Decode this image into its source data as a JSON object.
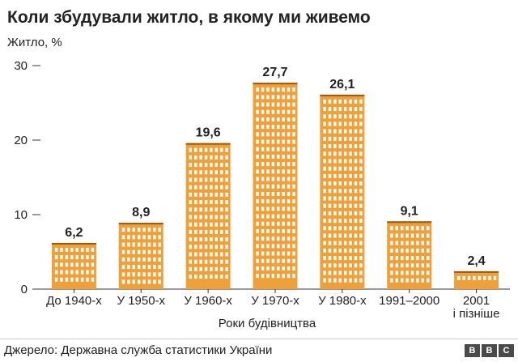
{
  "title": "Коли збудували житло, в якому ми живемо",
  "source": "Джерело: Державна служба статистики України",
  "logo": [
    "B",
    "B",
    "C"
  ],
  "colors": {
    "bar": "#f0a038",
    "bar_edge": "#9a5a14",
    "window": "#ffffff",
    "axis": "#333333",
    "grid": "#cccccc"
  },
  "chart_data": {
    "type": "bar",
    "title": "Коли збудували житло, в якому ми живемо",
    "ylabel": "Житло, %",
    "xlabel": "Роки будівництва",
    "categories": [
      "До 1940-х",
      "У 1950-х",
      "У 1960-х",
      "У 1970-х",
      "У 1980-х",
      "1991–2000",
      "2001 і пізніше"
    ],
    "values": [
      6.2,
      8.9,
      19.6,
      27.7,
      26.1,
      9.1,
      2.4
    ],
    "value_labels": [
      "6,2",
      "8,9",
      "19,6",
      "27,7",
      "26,1",
      "9,1",
      "2,4"
    ],
    "yticks": [
      0,
      10,
      20,
      30
    ],
    "ylim": [
      0,
      30
    ],
    "grid": false,
    "bar_style": "apartment buildings"
  }
}
